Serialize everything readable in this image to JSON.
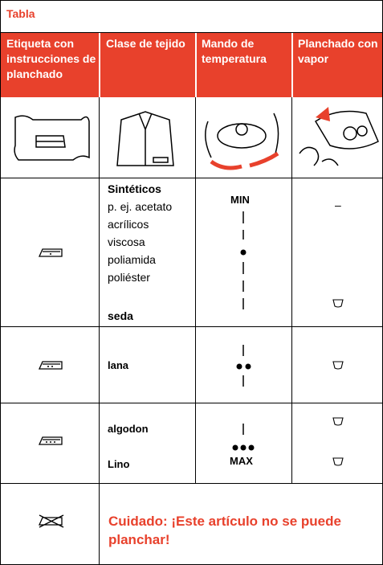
{
  "header": {
    "title": "Tabla"
  },
  "table": {
    "columns": [
      "Etiqueta con instrucciones de planchado",
      "Clase de tejido",
      "Mando de temperatura",
      "Planchado con vapor"
    ],
    "rows": [
      {
        "fabric": [
          "Sintéticos",
          "p. ej. acetato",
          "acrílicos",
          "viscosa",
          "poliamida",
          "poliéster",
          "seda"
        ],
        "temperature": "MIN",
        "steam": "–"
      },
      {
        "fabric": [
          "lana"
        ]
      },
      {
        "fabric": [
          "algodon",
          "Lino"
        ],
        "temperature": "MAX"
      }
    ],
    "warning": "Cuidado: ¡Este artículo no se puede planchar!"
  }
}
